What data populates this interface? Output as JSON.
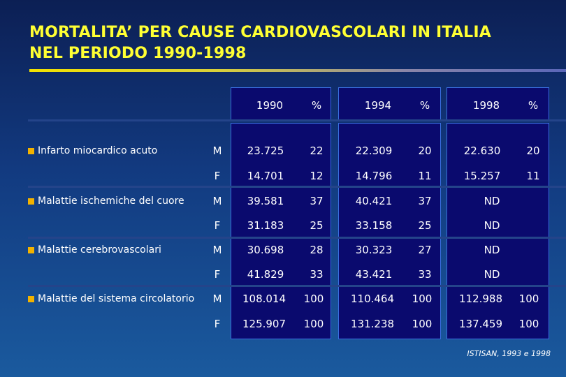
{
  "title_line1": "MORTALITA’ PER CAUSE CARDIOVASCOLARI IN ITALIA",
  "title_line2": "NEL PERIODO 1990-1998",
  "columns": [
    {
      "year": "1990",
      "pct": "%"
    },
    {
      "year": "1994",
      "pct": "%"
    },
    {
      "year": "1998",
      "pct": "%"
    }
  ],
  "rows": [
    {
      "cause": "Infarto miocardico acuto",
      "m": [
        [
          "23.725",
          "22"
        ],
        [
          "22.309",
          "20"
        ],
        [
          "22.630",
          "20"
        ]
      ],
      "f": [
        [
          "14.701",
          "12"
        ],
        [
          "14.796",
          "11"
        ],
        [
          "15.257",
          "11"
        ]
      ]
    },
    {
      "cause": "Malattie ischemiche del cuore",
      "m": [
        [
          "39.581",
          "37"
        ],
        [
          "40.421",
          "37"
        ],
        [
          "ND",
          ""
        ]
      ],
      "f": [
        [
          "31.183",
          "25"
        ],
        [
          "33.158",
          "25"
        ],
        [
          "ND",
          ""
        ]
      ]
    },
    {
      "cause": "Malattie cerebrovascolari",
      "m": [
        [
          "30.698",
          "28"
        ],
        [
          "30.323",
          "27"
        ],
        [
          "ND",
          ""
        ]
      ],
      "f": [
        [
          "41.829",
          "33"
        ],
        [
          "43.421",
          "33"
        ],
        [
          "ND",
          ""
        ]
      ]
    },
    {
      "cause": "Malattie del sistema circolatorio",
      "m": [
        [
          "108.014",
          "100"
        ],
        [
          "110.464",
          "100"
        ],
        [
          "112.988",
          "100"
        ]
      ],
      "f": [
        [
          "125.907",
          "100"
        ],
        [
          "131.238",
          "100"
        ],
        [
          "137.459",
          "100"
        ]
      ]
    }
  ],
  "sex_labels": {
    "m": "M",
    "f": "F"
  },
  "source": "ISTISAN, 1993 e 1998",
  "colors": {
    "title": "#ffff33",
    "bullet": "#f2b200",
    "panel": "#0a0a6e"
  }
}
